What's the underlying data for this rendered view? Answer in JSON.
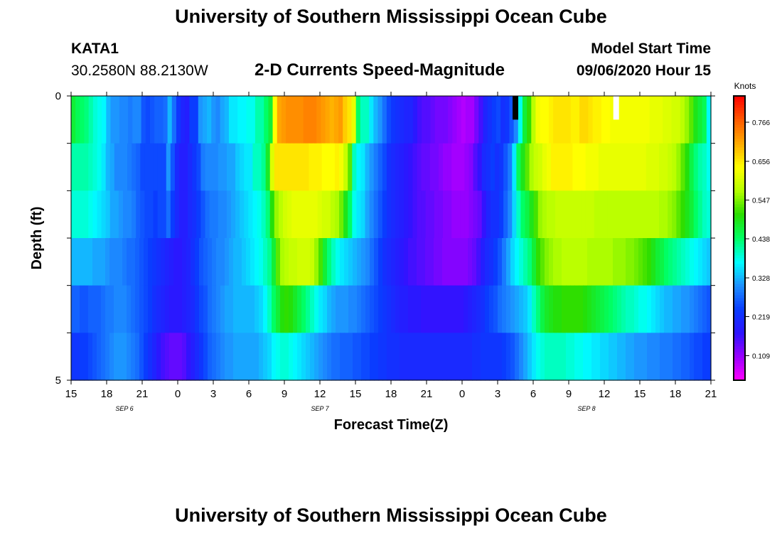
{
  "page": {
    "title_top": "University of Southern Mississippi Ocean Cube",
    "title_bottom": "University of Southern Mississippi Ocean Cube",
    "station_id": "KATA1",
    "station_coords": "30.2580N 88.2130W",
    "model_start_label": "Model Start Time",
    "model_start_value": "09/06/2020 Hour 15"
  },
  "colors": {
    "scale": [
      "#ff00ff",
      "#9a00ff",
      "#2d14ff",
      "#0a3cff",
      "#1e90ff",
      "#00ffff",
      "#00ff64",
      "#28dc00",
      "#b4ff00",
      "#ffff00",
      "#ffaa00",
      "#ff5a00",
      "#ff0000"
    ],
    "marker_black": "#000000",
    "marker_white": "#ffffff"
  },
  "chart_data": {
    "type": "heatmap",
    "title": "2-D Currents Speed-Magnitude",
    "xlabel": "Forecast Time(Z)",
    "ylabel": "Depth (ft)",
    "x_tick_labels": [
      "15",
      "18",
      "21",
      "0",
      "3",
      "6",
      "9",
      "12",
      "15",
      "18",
      "21",
      "0",
      "3",
      "6",
      "9",
      "12",
      "15",
      "18",
      "21"
    ],
    "date_labels": [
      {
        "label": "SEP 6",
        "at_hour": 4.5
      },
      {
        "label": "SEP 7",
        "at_hour": 21
      },
      {
        "label": "SEP 8",
        "at_hour": 43.5
      }
    ],
    "x_range_hours": [
      0,
      54
    ],
    "y_tick_labels": [
      "0",
      "5"
    ],
    "ylim": [
      0,
      5
    ],
    "depth_levels": 5,
    "columns_per_hour": 2,
    "colorbar": {
      "label": "Knots",
      "range": [
        0.04,
        0.84
      ],
      "tick_labels": [
        "0.109",
        "0.219",
        "0.328",
        "0.438",
        "0.547",
        "0.656",
        "0.766"
      ]
    },
    "speed_profiles": [
      [
        0.47,
        0.45,
        0.44,
        0.43,
        0.41,
        0.39,
        0.38,
        0.37,
        0.33,
        0.31,
        0.31,
        0.3,
        0.3,
        0.29,
        0.3,
        0.3,
        0.26,
        0.25,
        0.26,
        0.27,
        0.27,
        0.28,
        0.33,
        0.28,
        0.23,
        0.2,
        0.19,
        0.24,
        0.24,
        0.31,
        0.32,
        0.33,
        0.31,
        0.3,
        0.32,
        0.33,
        0.36,
        0.36,
        0.37,
        0.37,
        0.38,
        0.38,
        0.41,
        0.41,
        0.44,
        0.47,
        0.64,
        0.71,
        0.72,
        0.73,
        0.73,
        0.73,
        0.73,
        0.74,
        0.74,
        0.74,
        0.73,
        0.72,
        0.71,
        0.7,
        0.71,
        0.72,
        0.68,
        0.66,
        0.62,
        0.44,
        0.4,
        0.4,
        0.36,
        0.33,
        0.31,
        0.28,
        0.25,
        0.23,
        0.22,
        0.21,
        0.2,
        0.2,
        0.18,
        0.16,
        0.15,
        0.15,
        0.14,
        0.13,
        0.13,
        0.13,
        0.12,
        0.11,
        0.1,
        0.09,
        0.1,
        0.1,
        0.13,
        0.16,
        0.2,
        0.22,
        0.24,
        0.25,
        0.22,
        0.23,
        0.26,
        0.3,
        0.38,
        0.47,
        0.51,
        0.58,
        0.63,
        0.64,
        0.64,
        0.65,
        0.66,
        0.66,
        0.66,
        0.66,
        0.65,
        0.65,
        0.67,
        0.67,
        0.66,
        0.65,
        0.65,
        0.64,
        0.64,
        0.63,
        0.63,
        0.63,
        0.63,
        0.63,
        0.63,
        0.63,
        0.63,
        0.63,
        0.62,
        0.62,
        0.62,
        0.61,
        0.61,
        0.6,
        0.6,
        0.58,
        0.56,
        0.53,
        0.49,
        0.47,
        0.45,
        0.37
      ],
      [
        0.41,
        0.41,
        0.41,
        0.41,
        0.4,
        0.39,
        0.38,
        0.36,
        0.33,
        0.32,
        0.3,
        0.3,
        0.3,
        0.29,
        0.28,
        0.27,
        0.25,
        0.25,
        0.25,
        0.25,
        0.25,
        0.25,
        0.31,
        0.26,
        0.21,
        0.19,
        0.19,
        0.21,
        0.23,
        0.25,
        0.29,
        0.3,
        0.3,
        0.3,
        0.31,
        0.31,
        0.32,
        0.32,
        0.34,
        0.35,
        0.36,
        0.36,
        0.4,
        0.4,
        0.42,
        0.48,
        0.61,
        0.66,
        0.66,
        0.66,
        0.66,
        0.66,
        0.66,
        0.66,
        0.66,
        0.65,
        0.65,
        0.65,
        0.64,
        0.64,
        0.64,
        0.65,
        0.63,
        0.59,
        0.53,
        0.4,
        0.37,
        0.36,
        0.33,
        0.31,
        0.29,
        0.27,
        0.25,
        0.22,
        0.21,
        0.2,
        0.19,
        0.18,
        0.17,
        0.16,
        0.15,
        0.14,
        0.14,
        0.13,
        0.13,
        0.12,
        0.11,
        0.11,
        0.1,
        0.1,
        0.1,
        0.11,
        0.12,
        0.15,
        0.17,
        0.21,
        0.22,
        0.24,
        0.22,
        0.23,
        0.26,
        0.29,
        0.36,
        0.45,
        0.49,
        0.53,
        0.57,
        0.59,
        0.6,
        0.62,
        0.63,
        0.65,
        0.65,
        0.65,
        0.65,
        0.65,
        0.64,
        0.64,
        0.64,
        0.63,
        0.63,
        0.63,
        0.62,
        0.62,
        0.62,
        0.62,
        0.62,
        0.62,
        0.62,
        0.62,
        0.62,
        0.62,
        0.62,
        0.61,
        0.61,
        0.61,
        0.6,
        0.6,
        0.59,
        0.58,
        0.56,
        0.53,
        0.5,
        0.46,
        0.43,
        0.41,
        0.4,
        0.38
      ],
      [
        0.39,
        0.39,
        0.39,
        0.39,
        0.38,
        0.37,
        0.36,
        0.35,
        0.34,
        0.32,
        0.32,
        0.31,
        0.3,
        0.3,
        0.29,
        0.27,
        0.26,
        0.25,
        0.25,
        0.24,
        0.25,
        0.25,
        0.28,
        0.24,
        0.21,
        0.19,
        0.19,
        0.21,
        0.22,
        0.24,
        0.26,
        0.28,
        0.29,
        0.29,
        0.3,
        0.3,
        0.31,
        0.32,
        0.33,
        0.34,
        0.35,
        0.36,
        0.37,
        0.38,
        0.4,
        0.43,
        0.5,
        0.56,
        0.58,
        0.6,
        0.61,
        0.62,
        0.62,
        0.62,
        0.62,
        0.62,
        0.62,
        0.61,
        0.6,
        0.6,
        0.58,
        0.57,
        0.54,
        0.49,
        0.44,
        0.38,
        0.36,
        0.35,
        0.32,
        0.3,
        0.28,
        0.26,
        0.24,
        0.22,
        0.21,
        0.2,
        0.19,
        0.18,
        0.17,
        0.16,
        0.15,
        0.15,
        0.14,
        0.14,
        0.13,
        0.13,
        0.12,
        0.12,
        0.11,
        0.11,
        0.11,
        0.11,
        0.12,
        0.13,
        0.14,
        0.17,
        0.2,
        0.22,
        0.22,
        0.24,
        0.27,
        0.3,
        0.35,
        0.4,
        0.44,
        0.46,
        0.49,
        0.52,
        0.56,
        0.57,
        0.58,
        0.58,
        0.59,
        0.59,
        0.59,
        0.59,
        0.59,
        0.59,
        0.59,
        0.59,
        0.59,
        0.58,
        0.58,
        0.58,
        0.58,
        0.58,
        0.58,
        0.58,
        0.58,
        0.58,
        0.58,
        0.58,
        0.58,
        0.58,
        0.58,
        0.58,
        0.57,
        0.57,
        0.56,
        0.55,
        0.53,
        0.51,
        0.49,
        0.47,
        0.44,
        0.42,
        0.4,
        0.39
      ],
      [
        0.33,
        0.33,
        0.33,
        0.33,
        0.33,
        0.32,
        0.32,
        0.32,
        0.31,
        0.3,
        0.3,
        0.3,
        0.29,
        0.28,
        0.28,
        0.27,
        0.26,
        0.25,
        0.24,
        0.23,
        0.22,
        0.21,
        0.2,
        0.19,
        0.18,
        0.18,
        0.19,
        0.2,
        0.22,
        0.24,
        0.26,
        0.27,
        0.28,
        0.29,
        0.3,
        0.3,
        0.31,
        0.32,
        0.33,
        0.33,
        0.34,
        0.35,
        0.36,
        0.37,
        0.38,
        0.4,
        0.42,
        0.47,
        0.53,
        0.57,
        0.58,
        0.59,
        0.59,
        0.6,
        0.6,
        0.6,
        0.59,
        0.56,
        0.52,
        0.47,
        0.43,
        0.4,
        0.38,
        0.36,
        0.35,
        0.34,
        0.33,
        0.32,
        0.31,
        0.3,
        0.28,
        0.26,
        0.24,
        0.22,
        0.21,
        0.2,
        0.19,
        0.18,
        0.17,
        0.16,
        0.16,
        0.15,
        0.15,
        0.14,
        0.14,
        0.13,
        0.13,
        0.12,
        0.12,
        0.12,
        0.12,
        0.12,
        0.12,
        0.13,
        0.14,
        0.16,
        0.19,
        0.21,
        0.22,
        0.24,
        0.26,
        0.29,
        0.32,
        0.35,
        0.37,
        0.39,
        0.41,
        0.43,
        0.47,
        0.51,
        0.53,
        0.55,
        0.56,
        0.57,
        0.57,
        0.58,
        0.58,
        0.58,
        0.58,
        0.58,
        0.58,
        0.57,
        0.57,
        0.57,
        0.57,
        0.57,
        0.57,
        0.56,
        0.56,
        0.56,
        0.55,
        0.55,
        0.54,
        0.53,
        0.52,
        0.51,
        0.49,
        0.47,
        0.46,
        0.44,
        0.43,
        0.42,
        0.41,
        0.4,
        0.39,
        0.38,
        0.37,
        0.36,
        0.35,
        0.34
      ],
      [
        0.27,
        0.27,
        0.26,
        0.26,
        0.27,
        0.27,
        0.27,
        0.28,
        0.29,
        0.29,
        0.3,
        0.3,
        0.3,
        0.29,
        0.28,
        0.27,
        0.26,
        0.25,
        0.24,
        0.22,
        0.21,
        0.2,
        0.19,
        0.18,
        0.18,
        0.18,
        0.19,
        0.2,
        0.21,
        0.23,
        0.25,
        0.26,
        0.28,
        0.29,
        0.3,
        0.31,
        0.32,
        0.32,
        0.33,
        0.33,
        0.33,
        0.33,
        0.33,
        0.34,
        0.35,
        0.37,
        0.4,
        0.44,
        0.47,
        0.5,
        0.51,
        0.5,
        0.48,
        0.46,
        0.44,
        0.42,
        0.4,
        0.38,
        0.36,
        0.35,
        0.33,
        0.32,
        0.31,
        0.31,
        0.31,
        0.3,
        0.3,
        0.29,
        0.28,
        0.27,
        0.26,
        0.25,
        0.24,
        0.23,
        0.22,
        0.21,
        0.2,
        0.19,
        0.19,
        0.18,
        0.18,
        0.18,
        0.17,
        0.17,
        0.17,
        0.17,
        0.17,
        0.17,
        0.17,
        0.17,
        0.17,
        0.17,
        0.18,
        0.19,
        0.2,
        0.21,
        0.22,
        0.24,
        0.25,
        0.26,
        0.28,
        0.29,
        0.3,
        0.31,
        0.32,
        0.33,
        0.34,
        0.36,
        0.4,
        0.43,
        0.46,
        0.48,
        0.49,
        0.5,
        0.5,
        0.51,
        0.51,
        0.51,
        0.51,
        0.51,
        0.5,
        0.49,
        0.48,
        0.47,
        0.46,
        0.45,
        0.44,
        0.43,
        0.42,
        0.41,
        0.4,
        0.4,
        0.39,
        0.38,
        0.38,
        0.37,
        0.36,
        0.35,
        0.34,
        0.33,
        0.33,
        0.32,
        0.32,
        0.31,
        0.31,
        0.3,
        0.29,
        0.28,
        0.27,
        0.26
      ],
      [
        0.23,
        0.23,
        0.24,
        0.24,
        0.25,
        0.26,
        0.27,
        0.28,
        0.29,
        0.3,
        0.31,
        0.31,
        0.31,
        0.3,
        0.29,
        0.28,
        0.26,
        0.24,
        0.22,
        0.2,
        0.18,
        0.16,
        0.15,
        0.14,
        0.14,
        0.14,
        0.15,
        0.17,
        0.19,
        0.21,
        0.23,
        0.25,
        0.27,
        0.28,
        0.29,
        0.3,
        0.31,
        0.31,
        0.32,
        0.32,
        0.32,
        0.32,
        0.32,
        0.32,
        0.33,
        0.34,
        0.35,
        0.37,
        0.38,
        0.39,
        0.39,
        0.38,
        0.37,
        0.36,
        0.35,
        0.34,
        0.33,
        0.32,
        0.31,
        0.3,
        0.29,
        0.28,
        0.28,
        0.27,
        0.27,
        0.27,
        0.26,
        0.26,
        0.25,
        0.25,
        0.24,
        0.24,
        0.23,
        0.23,
        0.22,
        0.22,
        0.22,
        0.21,
        0.21,
        0.21,
        0.21,
        0.21,
        0.21,
        0.21,
        0.21,
        0.21,
        0.21,
        0.21,
        0.21,
        0.21,
        0.21,
        0.21,
        0.21,
        0.21,
        0.22,
        0.22,
        0.23,
        0.23,
        0.23,
        0.23,
        0.23,
        0.24,
        0.25,
        0.26,
        0.28,
        0.3,
        0.32,
        0.34,
        0.36,
        0.38,
        0.39,
        0.4,
        0.4,
        0.4,
        0.4,
        0.4,
        0.39,
        0.39,
        0.38,
        0.38,
        0.37,
        0.37,
        0.36,
        0.36,
        0.35,
        0.35,
        0.34,
        0.34,
        0.33,
        0.33,
        0.32,
        0.32,
        0.31,
        0.31,
        0.31,
        0.3,
        0.3,
        0.3,
        0.29,
        0.29,
        0.29,
        0.28,
        0.28,
        0.27,
        0.27,
        0.26,
        0.25,
        0.25,
        0.24,
        0.24
      ]
    ],
    "markers": [
      {
        "name": "black",
        "at_hour": 37.5
      },
      {
        "name": "white",
        "at_hour": 46.0
      }
    ]
  }
}
